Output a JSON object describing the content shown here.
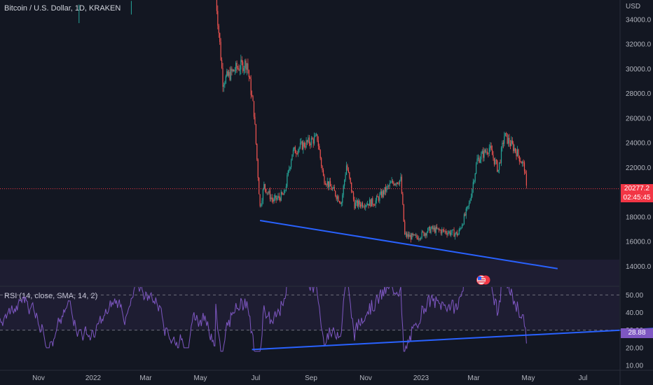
{
  "header": {
    "title": "Bitcoin / U.S. Dollar, 1D, KRAKEN",
    "currency": "USD"
  },
  "rsi": {
    "label": "RSI (14, close, SMA, 14, 2)",
    "current_value": "28.88",
    "ticks": [
      "50.00",
      "40.00",
      "30.00",
      "20.00",
      "10.00"
    ],
    "levels": [
      30,
      50
    ]
  },
  "price": {
    "current_value": "20277.2",
    "countdown": "02:45:45",
    "ticks": [
      "34000.0",
      "32000.0",
      "30000.0",
      "28000.0",
      "26000.0",
      "24000.0",
      "22000.0",
      "20000.0",
      "18000.0",
      "16000.0",
      "14000.0"
    ]
  },
  "time_axis": {
    "labels": [
      "Nov",
      "2022",
      "Mar",
      "May",
      "Jul",
      "Sep",
      "Nov",
      "2023",
      "Mar",
      "May",
      "Jul"
    ]
  },
  "colors": {
    "background": "#131722",
    "up": "#26a69a",
    "down": "#ef5350",
    "rsi_line": "#7e57c2",
    "trendline": "#2962ff",
    "price_line": "#f23645"
  },
  "chart_data": {
    "type": "candlestick",
    "title": "Bitcoin / U.S. Dollar, 1D, KRAKEN",
    "ylim": [
      13000,
      35000
    ],
    "close_path": [
      {
        "x": "2022-05-05",
        "y": 36000
      },
      {
        "x": "2022-05-12",
        "y": 29000
      },
      {
        "x": "2022-05-25",
        "y": 30000
      },
      {
        "x": "2022-06-05",
        "y": 30500
      },
      {
        "x": "2022-06-12",
        "y": 26500
      },
      {
        "x": "2022-06-18",
        "y": 18800
      },
      {
        "x": "2022-06-22",
        "y": 20500
      },
      {
        "x": "2022-07-01",
        "y": 19300
      },
      {
        "x": "2022-07-12",
        "y": 19800
      },
      {
        "x": "2022-07-20",
        "y": 23200
      },
      {
        "x": "2022-07-30",
        "y": 23800
      },
      {
        "x": "2022-08-14",
        "y": 24400
      },
      {
        "x": "2022-08-20",
        "y": 21200
      },
      {
        "x": "2022-09-07",
        "y": 19200
      },
      {
        "x": "2022-09-12",
        "y": 22200
      },
      {
        "x": "2022-09-20",
        "y": 19000
      },
      {
        "x": "2022-10-10",
        "y": 19200
      },
      {
        "x": "2022-10-28",
        "y": 20800
      },
      {
        "x": "2022-11-05",
        "y": 21000
      },
      {
        "x": "2022-11-09",
        "y": 16500
      },
      {
        "x": "2022-11-20",
        "y": 16300
      },
      {
        "x": "2022-12-05",
        "y": 17000
      },
      {
        "x": "2022-12-20",
        "y": 16800
      },
      {
        "x": "2023-01-01",
        "y": 16600
      },
      {
        "x": "2023-01-12",
        "y": 19000
      },
      {
        "x": "2023-01-20",
        "y": 22600
      },
      {
        "x": "2023-02-01",
        "y": 23600
      },
      {
        "x": "2023-02-10",
        "y": 21800
      },
      {
        "x": "2023-02-16",
        "y": 24600
      },
      {
        "x": "2023-02-28",
        "y": 23300
      },
      {
        "x": "2023-03-08",
        "y": 22000
      },
      {
        "x": "2023-03-10",
        "y": 20277.2
      }
    ],
    "trendlines": [
      {
        "series": "price",
        "from": {
          "x": "2022-06-18",
          "y": 17700
        },
        "to": {
          "x": "2023-04-10",
          "y": 13800
        }
      },
      {
        "series": "rsi",
        "from": {
          "x": "2022-06-10",
          "y": 19
        },
        "to": {
          "x": "2023-07-15",
          "y": 31
        }
      }
    ]
  }
}
